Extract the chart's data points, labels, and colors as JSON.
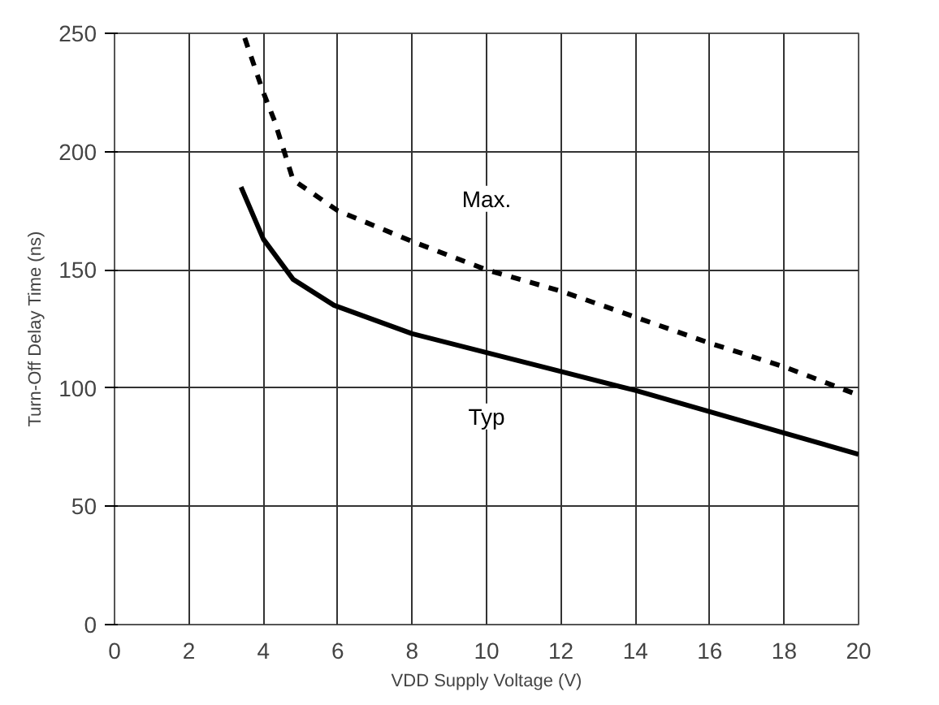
{
  "chart_data": {
    "type": "line",
    "xlabel": "VDD Supply Voltage (V)",
    "ylabel": "Turn-Off Delay Time (ns)",
    "xlim": [
      0,
      20
    ],
    "xticks": [
      0,
      2,
      4,
      6,
      8,
      10,
      12,
      14,
      16,
      18,
      20
    ],
    "ylim": [
      0,
      250
    ],
    "yticks": [
      0,
      50,
      100,
      150,
      200,
      250
    ],
    "grid": true,
    "marker": "none",
    "series": [
      {
        "name": "Max.",
        "color": "#000000",
        "line_style": "dashed",
        "x": [
          3.5,
          4,
          4.3,
          4.8,
          6,
          8,
          10,
          12,
          14,
          16,
          18,
          20
        ],
        "values": [
          248,
          225,
          213,
          188,
          175,
          162,
          150,
          141,
          130,
          119,
          109,
          97
        ]
      },
      {
        "name": "Typ",
        "color": "#000000",
        "line_style": "solid",
        "x": [
          3.4,
          4,
          4.8,
          5.9,
          8,
          10,
          12,
          14,
          16,
          18,
          20
        ],
        "values": [
          185,
          163,
          146,
          135,
          123,
          115,
          107,
          99,
          90,
          81,
          72
        ]
      }
    ]
  }
}
